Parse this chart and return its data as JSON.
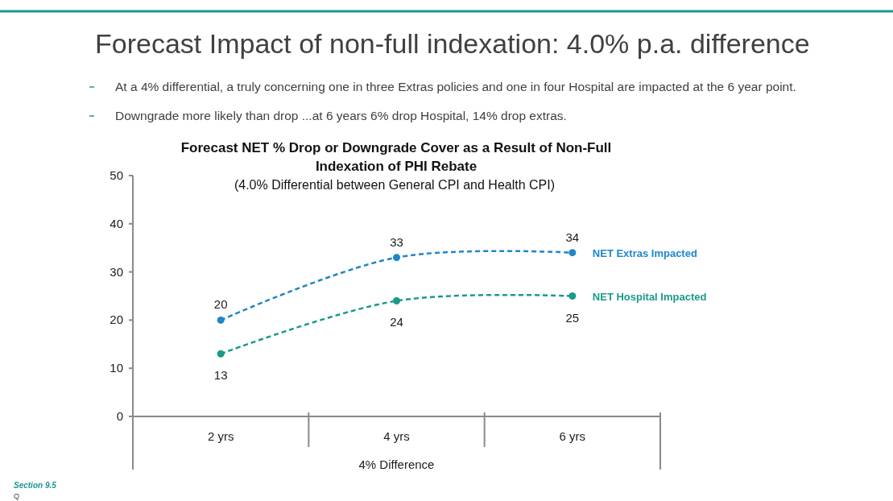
{
  "chart_data": {
    "type": "line",
    "title": "Forecast Impact of non-full indexation: 4.0% p.a. difference",
    "subtitle": "Forecast NET % Drop or Downgrade Cover as a Result of Non-Full Indexation of PHI Rebate",
    "xlabel": "4% Difference",
    "annotations": [
      "(4.0% Differential between General CPI and Health CPI)",
      "At a 4% differential, a truly concerning one in three Extras policies and one in four Hospital are impacted at the 6 year point.",
      "Downgrade more likely than drop ...at 6 years 6% drop Hospital, 14% drop extras.",
      "Section 9.5",
      "Q"
    ],
    "categories": [
      "2 yrs",
      "4 yrs",
      "6 yrs"
    ],
    "series": [
      {
        "name": "NET Extras Impacted",
        "color": "#1f86c8",
        "values": [
          20,
          33,
          34
        ]
      },
      {
        "name": "NET Hospital Impacted",
        "color": "#1a9a88",
        "values": [
          13,
          24,
          25
        ]
      }
    ],
    "ylim": [
      0,
      50
    ],
    "yticks": [
      0,
      10,
      20,
      30,
      40,
      50
    ],
    "grid": false,
    "legend": false,
    "marker": "circle",
    "line_style": "dashed",
    "data_labels": true
  }
}
